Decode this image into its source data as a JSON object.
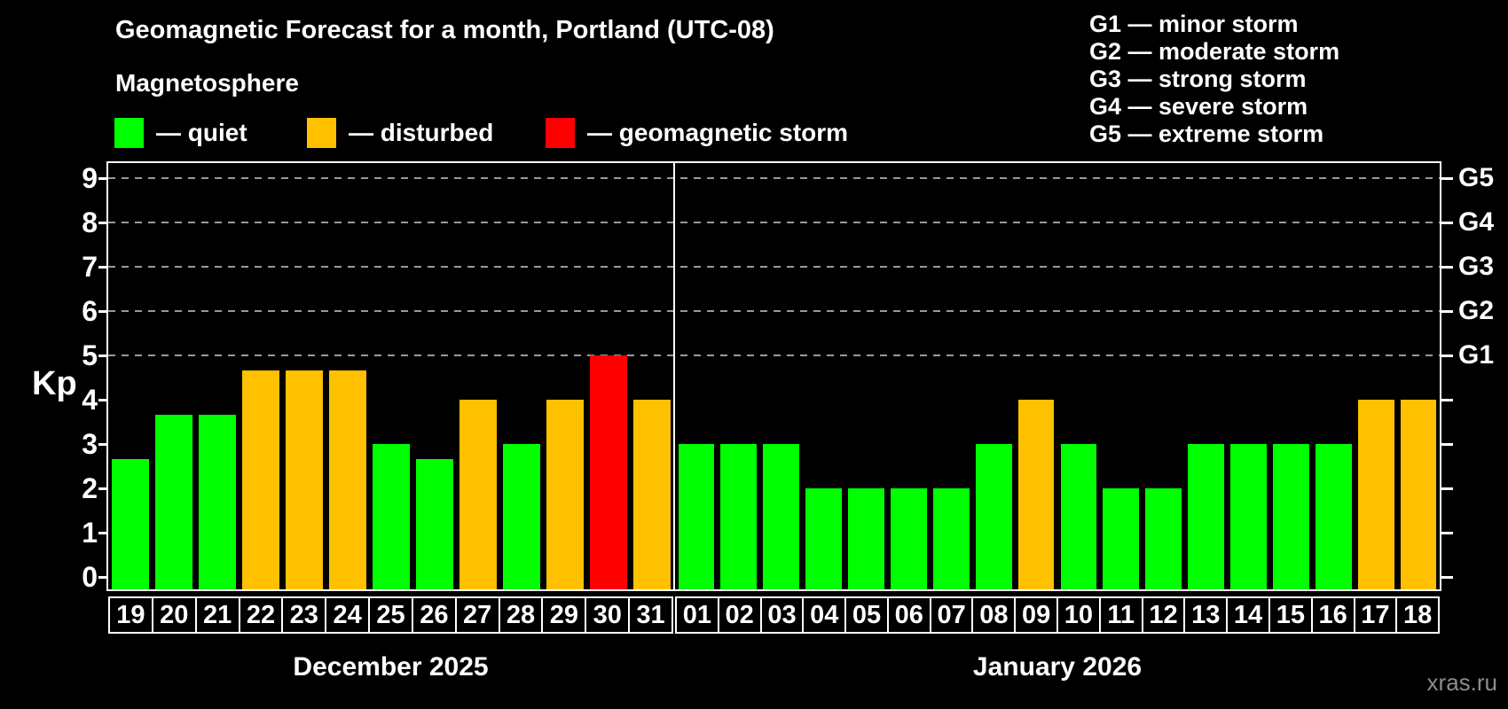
{
  "title": "Geomagnetic Forecast for a month, Portland (UTC-08)",
  "watermark": "xras.ru",
  "legend": {
    "heading": "Magnetosphere",
    "items": [
      {
        "key": "quiet",
        "label": "— quiet"
      },
      {
        "key": "disturbed",
        "label": "— disturbed"
      },
      {
        "key": "storm",
        "label": "— geomagnetic storm"
      }
    ]
  },
  "storm_scale_legend": [
    "G1 — minor storm",
    "G2 — moderate storm",
    "G3 — strong storm",
    "G4 — severe storm",
    "G5 — extreme storm"
  ],
  "colors": {
    "quiet": "#00ff00",
    "disturbed": "#ffc000",
    "storm": "#ff0000",
    "grid": "#999999",
    "frame": "#ffffff",
    "text": "#ffffff",
    "watermark": "#8c8c8c"
  },
  "y_axis": {
    "label": "Kp",
    "ticks": [
      0,
      1,
      2,
      3,
      4,
      5,
      6,
      7,
      8,
      9
    ]
  },
  "right_axis": {
    "labels": [
      {
        "kp": 5,
        "text": "G1"
      },
      {
        "kp": 6,
        "text": "G2"
      },
      {
        "kp": 7,
        "text": "G3"
      },
      {
        "kp": 8,
        "text": "G4"
      },
      {
        "kp": 9,
        "text": "G5"
      }
    ]
  },
  "chart_data": {
    "type": "bar",
    "ylabel": "Kp",
    "ylim": [
      0,
      9.6
    ],
    "grid": "dashed horizontal at Kp 5-9 only",
    "legend_position": "top-left",
    "gridlines_at": [
      5,
      6,
      7,
      8,
      9
    ],
    "groups": [
      {
        "label": "December 2025",
        "days": [
          {
            "date": "19",
            "kp": 2.67,
            "state": "quiet"
          },
          {
            "date": "20",
            "kp": 3.67,
            "state": "quiet"
          },
          {
            "date": "21",
            "kp": 3.67,
            "state": "quiet"
          },
          {
            "date": "22",
            "kp": 4.67,
            "state": "disturbed"
          },
          {
            "date": "23",
            "kp": 4.67,
            "state": "disturbed"
          },
          {
            "date": "24",
            "kp": 4.67,
            "state": "disturbed"
          },
          {
            "date": "25",
            "kp": 3,
            "state": "quiet"
          },
          {
            "date": "26",
            "kp": 2.67,
            "state": "quiet"
          },
          {
            "date": "27",
            "kp": 4,
            "state": "disturbed"
          },
          {
            "date": "28",
            "kp": 3,
            "state": "quiet"
          },
          {
            "date": "29",
            "kp": 4,
            "state": "disturbed"
          },
          {
            "date": "30",
            "kp": 5,
            "state": "storm"
          },
          {
            "date": "31",
            "kp": 4,
            "state": "disturbed"
          }
        ]
      },
      {
        "label": "January 2026",
        "days": [
          {
            "date": "01",
            "kp": 3,
            "state": "quiet"
          },
          {
            "date": "02",
            "kp": 3,
            "state": "quiet"
          },
          {
            "date": "03",
            "kp": 3,
            "state": "quiet"
          },
          {
            "date": "04",
            "kp": 2,
            "state": "quiet"
          },
          {
            "date": "05",
            "kp": 2,
            "state": "quiet"
          },
          {
            "date": "06",
            "kp": 2,
            "state": "quiet"
          },
          {
            "date": "07",
            "kp": 2,
            "state": "quiet"
          },
          {
            "date": "08",
            "kp": 3,
            "state": "quiet"
          },
          {
            "date": "09",
            "kp": 4,
            "state": "disturbed"
          },
          {
            "date": "10",
            "kp": 3,
            "state": "quiet"
          },
          {
            "date": "11",
            "kp": 2,
            "state": "quiet"
          },
          {
            "date": "12",
            "kp": 2,
            "state": "quiet"
          },
          {
            "date": "13",
            "kp": 3,
            "state": "quiet"
          },
          {
            "date": "14",
            "kp": 3,
            "state": "quiet"
          },
          {
            "date": "15",
            "kp": 3,
            "state": "quiet"
          },
          {
            "date": "16",
            "kp": 3,
            "state": "quiet"
          },
          {
            "date": "17",
            "kp": 4,
            "state": "disturbed"
          },
          {
            "date": "18",
            "kp": 4,
            "state": "disturbed"
          }
        ]
      }
    ]
  }
}
